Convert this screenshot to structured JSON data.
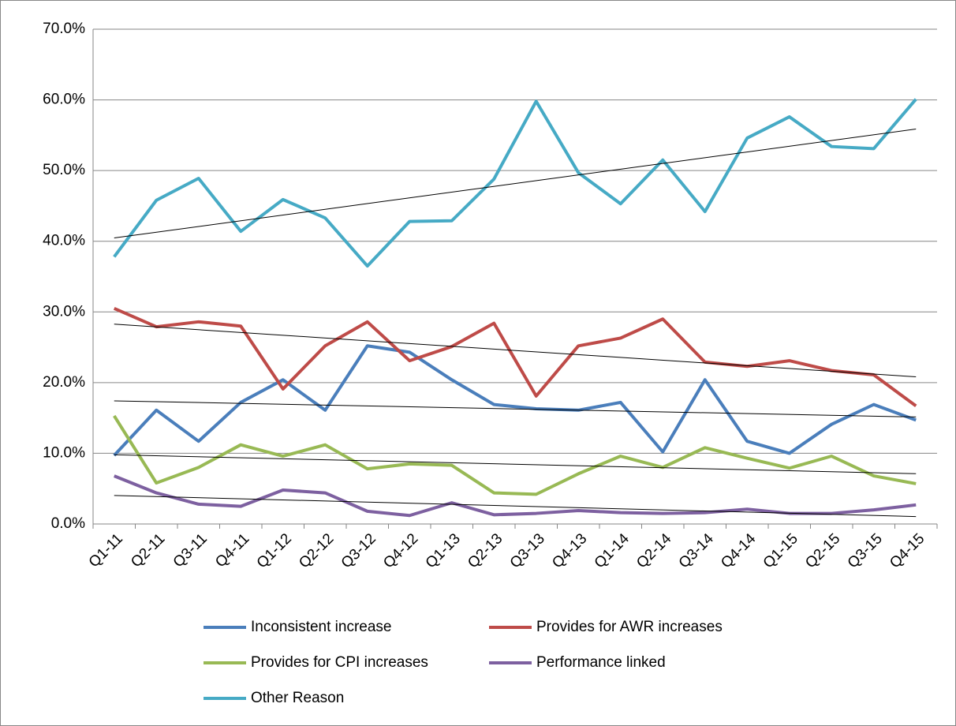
{
  "chart_data": {
    "type": "line",
    "categories": [
      "Q1-11",
      "Q2-11",
      "Q3-11",
      "Q4-11",
      "Q1-12",
      "Q2-12",
      "Q3-12",
      "Q4-12",
      "Q1-13",
      "Q2-13",
      "Q3-13",
      "Q4-13",
      "Q1-14",
      "Q2-14",
      "Q3-14",
      "Q4-14",
      "Q1-15",
      "Q2-15",
      "Q3-15",
      "Q4-15"
    ],
    "series": [
      {
        "name": "Inconsistent increase",
        "color": "#4a7ebb",
        "values": [
          9.7,
          16.1,
          11.7,
          17.2,
          20.4,
          16.1,
          25.2,
          24.3,
          20.4,
          16.9,
          16.3,
          16.1,
          17.2,
          10.2,
          20.4,
          11.7,
          10.0,
          14.1,
          16.9,
          14.7
        ]
      },
      {
        "name": "Provides for AWR increases",
        "color": "#be4b48",
        "values": [
          30.5,
          27.9,
          28.6,
          28.0,
          19.1,
          25.2,
          28.6,
          23.1,
          25.1,
          28.4,
          18.1,
          25.2,
          26.3,
          29.0,
          22.9,
          22.3,
          23.1,
          21.7,
          21.1,
          16.7
        ]
      },
      {
        "name": "Provides for CPI increases",
        "color": "#98b954",
        "values": [
          15.3,
          5.8,
          8.0,
          11.2,
          9.6,
          11.2,
          7.8,
          8.5,
          8.3,
          4.4,
          4.2,
          7.1,
          9.6,
          8.0,
          10.8,
          9.3,
          7.9,
          9.6,
          6.8,
          5.7
        ]
      },
      {
        "name": "Performance linked",
        "color": "#7d60a0",
        "values": [
          6.8,
          4.4,
          2.8,
          2.5,
          4.8,
          4.4,
          1.8,
          1.2,
          3.0,
          1.3,
          1.5,
          1.9,
          1.6,
          1.5,
          1.6,
          2.1,
          1.5,
          1.5,
          2.0,
          2.7
        ]
      },
      {
        "name": "Other Reason",
        "color": "#46aac5",
        "values": [
          37.8,
          45.8,
          48.9,
          41.4,
          45.9,
          43.3,
          36.5,
          42.8,
          42.9,
          48.8,
          59.8,
          49.7,
          45.3,
          51.5,
          44.2,
          54.6,
          57.6,
          53.4,
          53.1,
          60.1
        ]
      }
    ],
    "ylim": [
      0,
      70
    ],
    "yticks": [
      {
        "value": 0,
        "label": "0.0%"
      },
      {
        "value": 10,
        "label": "10.0%"
      },
      {
        "value": 20,
        "label": "20.0%"
      },
      {
        "value": 30,
        "label": "30.0%"
      },
      {
        "value": 40,
        "label": "40.0%"
      },
      {
        "value": 50,
        "label": "50.0%"
      },
      {
        "value": 60,
        "label": "60.0%"
      },
      {
        "value": 70,
        "label": "70.0%"
      }
    ],
    "grid": true,
    "trendlines": true,
    "legend": "bottom"
  }
}
